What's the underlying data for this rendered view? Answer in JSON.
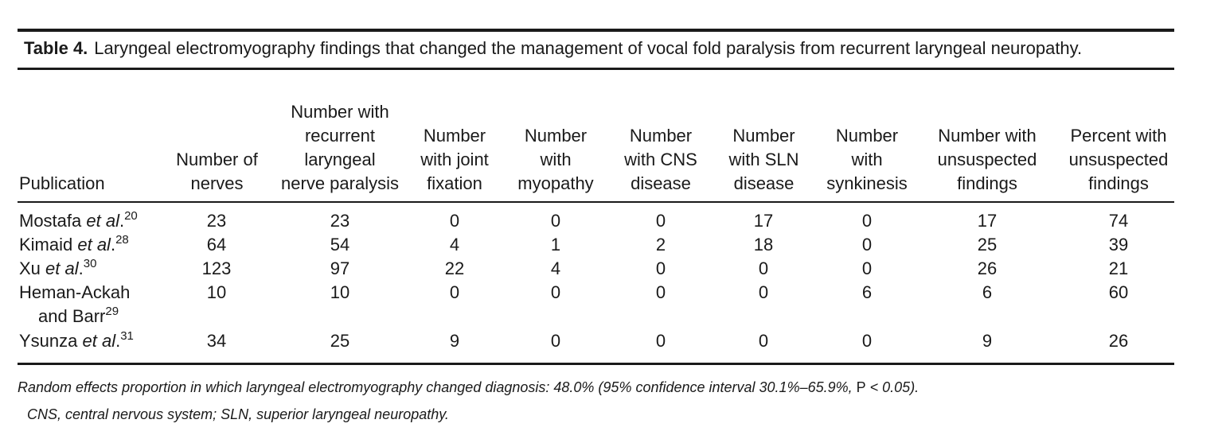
{
  "caption": {
    "label": "Table 4.",
    "text": "Laryngeal electromyography findings that changed the management of vocal fold paralysis from recurrent laryngeal neuropathy."
  },
  "columns": [
    "Publication",
    "Number of nerves",
    "Number with recurrent laryngeal nerve paralysis",
    "Number with joint fixation",
    "Number with myopathy",
    "Number with CNS disease",
    "Number with SLN disease",
    "Number with synkinesis",
    "Number with unsuspected findings",
    "Percent with unsuspected findings"
  ],
  "rows": [
    {
      "pub_pre": "Mostafa ",
      "pub_em": "et al",
      "pub_post": ".",
      "ref": "20",
      "values": [
        "23",
        "23",
        "0",
        "0",
        "0",
        "17",
        "0",
        "17",
        "74"
      ]
    },
    {
      "pub_pre": "Kimaid ",
      "pub_em": "et al",
      "pub_post": ".",
      "ref": "28",
      "values": [
        "64",
        "54",
        "4",
        "1",
        "2",
        "18",
        "0",
        "25",
        "39"
      ]
    },
    {
      "pub_pre": "Xu ",
      "pub_em": "et al",
      "pub_post": ".",
      "ref": "30",
      "values": [
        "123",
        "97",
        "22",
        "4",
        "0",
        "0",
        "0",
        "26",
        "21"
      ]
    },
    {
      "pub_line1": "Heman-Ackah",
      "pub_line2": "and Barr",
      "ref": "29",
      "values": [
        "10",
        "10",
        "0",
        "0",
        "0",
        "0",
        "6",
        "6",
        "60"
      ]
    },
    {
      "pub_pre": "Ysunza ",
      "pub_em": "et al",
      "pub_post": ".",
      "ref": "31",
      "values": [
        "34",
        "25",
        "9",
        "0",
        "0",
        "0",
        "0",
        "9",
        "26"
      ]
    }
  ],
  "footnotes": {
    "line1_italic": "Random effects proportion in which laryngeal electromyography changed diagnosis: 48.0% (95% confidence interval 30.1%–65.9%, ",
    "line1_p": "P",
    "line1_end": " < 0.05).",
    "line2": "CNS, central nervous system; SLN, superior laryngeal neuropathy."
  }
}
